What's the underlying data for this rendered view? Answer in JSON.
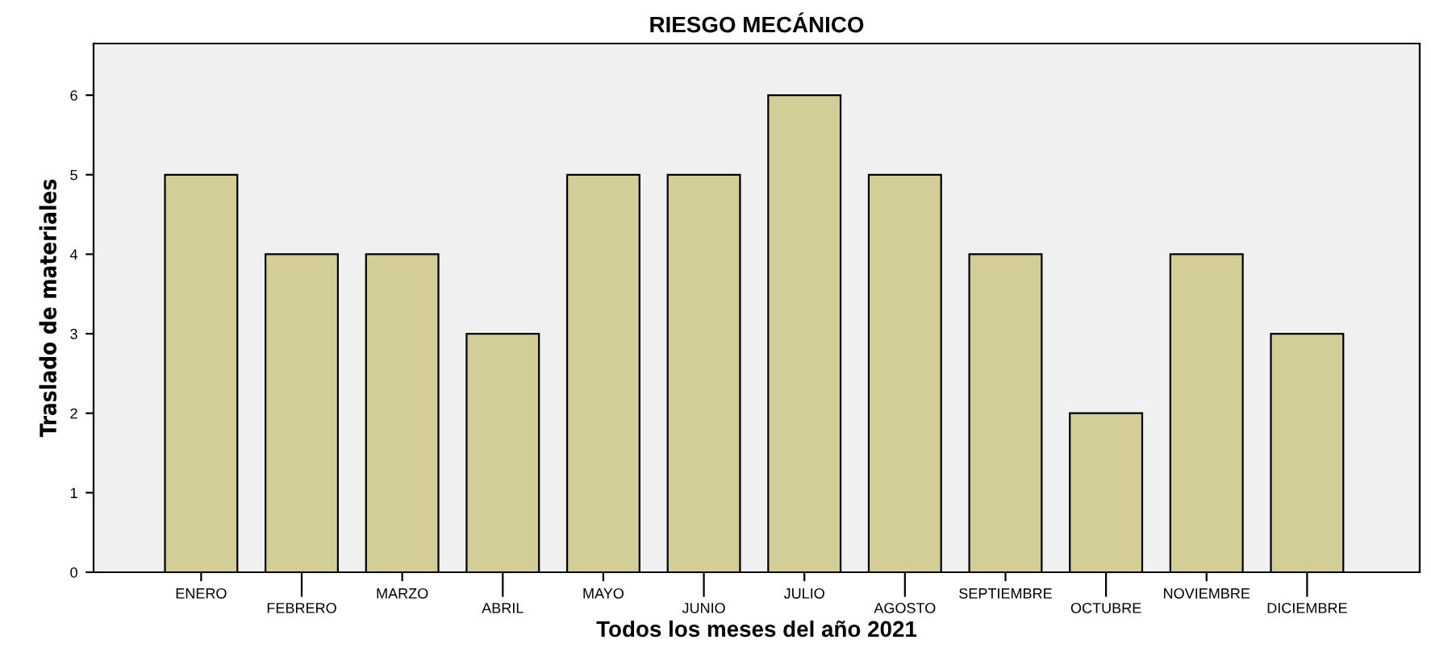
{
  "chart_data": {
    "type": "bar",
    "title": "RIESGO MECÁNICO",
    "xlabel": "Todos los meses del año 2021",
    "ylabel": "Traslado de materiales",
    "categories": [
      "ENERO",
      "FEBRERO",
      "MARZO",
      "ABRIL",
      "MAYO",
      "JUNIO",
      "JULIO",
      "AGOSTO",
      "SEPTIEMBRE",
      "OCTUBRE",
      "NOVIEMBRE",
      "DICIEMBRE"
    ],
    "values": [
      5,
      4,
      4,
      3,
      5,
      5,
      6,
      5,
      4,
      2,
      4,
      3
    ],
    "color": "#d3cd98",
    "ylim": [
      0,
      6.65
    ],
    "yticks": [
      0,
      1,
      2,
      3,
      4,
      5,
      6
    ],
    "grid": false
  }
}
